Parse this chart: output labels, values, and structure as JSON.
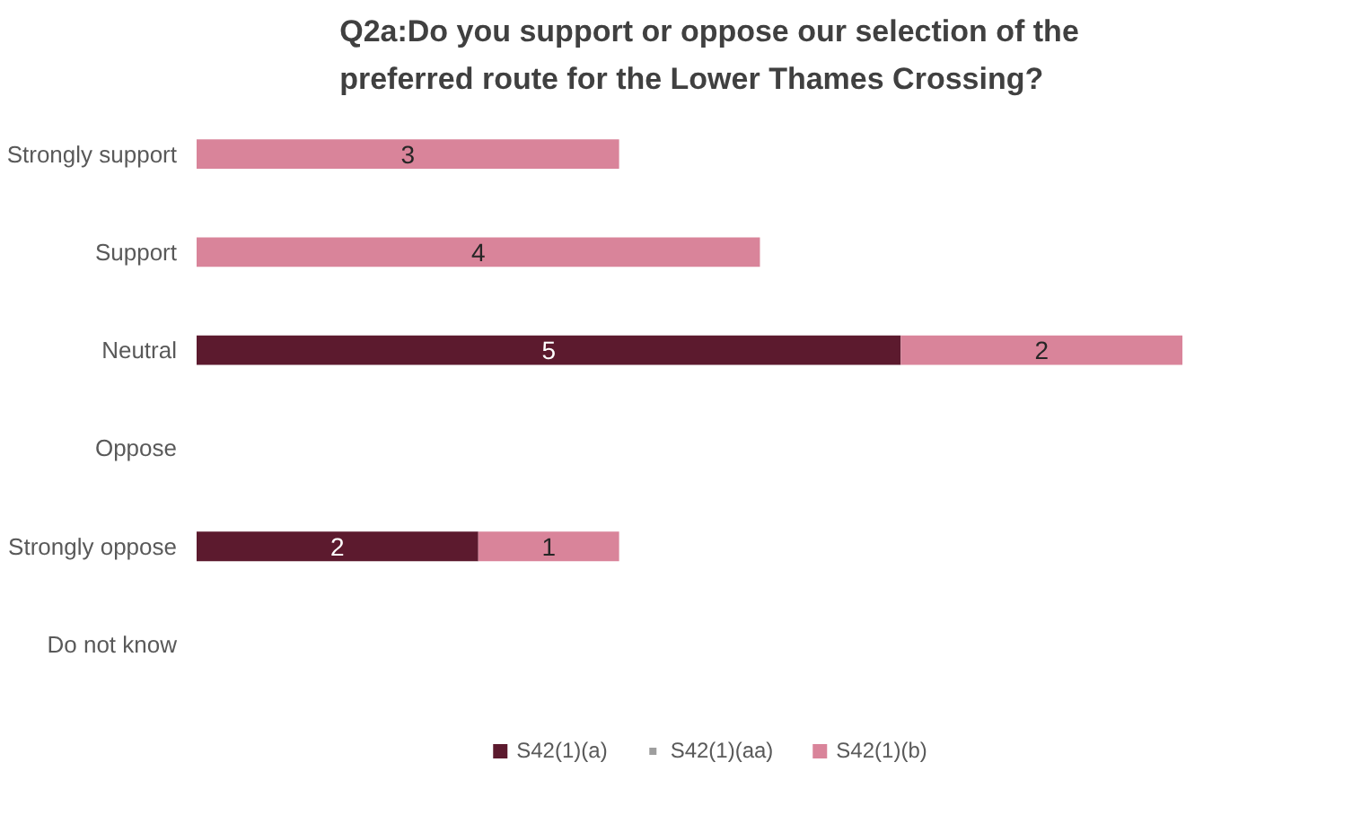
{
  "chart_data": {
    "type": "bar",
    "orientation": "horizontal",
    "stacked": true,
    "title": "Q2a:Do you support or oppose our selection of the\npreferred route for the Lower Thames Crossing?",
    "categories": [
      "Strongly support",
      "Support",
      "Neutral",
      "Oppose",
      "Strongly oppose",
      "Do not know"
    ],
    "series": [
      {
        "name": "S42(1)(a)",
        "color": "#5c1a2e",
        "values": [
          null,
          null,
          5,
          null,
          2,
          null
        ]
      },
      {
        "name": "S42(1)(aa)",
        "color": "#9e9e9e",
        "values": [
          null,
          null,
          null,
          null,
          null,
          null
        ]
      },
      {
        "name": "S42(1)(b)",
        "color": "#d9849a",
        "values": [
          3,
          4,
          2,
          null,
          1,
          null
        ]
      }
    ],
    "data_labels": true,
    "grid": false,
    "legend": "bottom"
  }
}
